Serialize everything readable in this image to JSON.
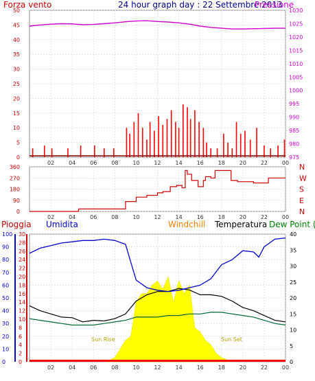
{
  "header": {
    "left_label": "Forza vento",
    "title": "24 hour graph day : 22 Settembre 2013",
    "right_label": "Pressione"
  },
  "wind_panel": {
    "direction_labels": [
      "N",
      "W",
      "S",
      "E",
      "N"
    ]
  },
  "bottom_header": {
    "rain": "Pioggia",
    "humidity": "Umidita",
    "windchill": "Windchill",
    "temperature": "Temperatura",
    "dewpoint": "Dew Point (°C"
  },
  "annotations": {
    "sunrise": "Sun Rise",
    "sunset": "Sun Set"
  },
  "colors": {
    "wind": "#ff0000",
    "gust": "#008000",
    "windchill_green": "#008000",
    "pressure": "#cc00cc",
    "direction": "#cc0000",
    "humidity": "#0000cc",
    "temperature": "#000000",
    "dewpoint": "#006633",
    "sun": "#ffff00",
    "rain": "#ff0000",
    "grid": "#d0d0d0"
  },
  "chart_data": [
    {
      "type": "line",
      "title": "24 hour graph day : 22 Settembre 2013",
      "x_ticks": [
        "02",
        "04",
        "06",
        "08",
        "10",
        "12",
        "14",
        "16",
        "18",
        "20",
        "22",
        "00"
      ],
      "left_axis": {
        "label": "Forza vento",
        "range": [
          0,
          50
        ],
        "ticks": [
          0,
          5,
          10,
          15,
          20,
          25,
          30,
          35,
          40,
          45,
          50
        ]
      },
      "right_axis": {
        "label": "Pressione",
        "range": [
          975,
          1030
        ],
        "ticks": [
          975,
          980,
          985,
          990,
          995,
          1000,
          1005,
          1010,
          1015,
          1020,
          1025,
          1030
        ]
      },
      "series": [
        {
          "name": "Pressione",
          "axis": "right",
          "x": [
            0,
            1,
            2,
            3,
            4,
            5,
            6,
            7,
            8,
            9,
            10,
            11,
            12,
            13,
            14,
            15,
            16,
            17,
            18,
            19,
            20,
            21,
            22,
            23,
            24
          ],
          "values": [
            1024.1,
            1024.5,
            1024.8,
            1025.0,
            1024.9,
            1024.6,
            1024.7,
            1025.0,
            1025.3,
            1025.7,
            1026.0,
            1026.1,
            1025.8,
            1025.6,
            1025.3,
            1024.8,
            1024.1,
            1023.6,
            1023.3,
            1023.0,
            1023.0,
            1023.1,
            1023.2,
            1023.3,
            1023.3
          ]
        },
        {
          "name": "Forza vento",
          "axis": "left",
          "x": [
            0.3,
            1.4,
            2.1,
            3.6,
            4.8,
            6.1,
            7.0,
            7.9,
            9.1,
            9.4,
            9.8,
            10.2,
            10.6,
            11.0,
            11.3,
            11.7,
            12.1,
            12.5,
            12.9,
            13.3,
            13.7,
            14.0,
            14.4,
            14.8,
            15.1,
            15.5,
            15.9,
            16.3,
            16.6,
            17.0,
            17.6,
            18.2,
            18.6,
            19.0,
            19.4,
            19.8,
            20.2,
            20.7,
            21.3,
            22.0,
            22.6,
            23.3,
            23.9
          ],
          "values": [
            3,
            4,
            3,
            3,
            4,
            4,
            3,
            3,
            10,
            8,
            12,
            15,
            10,
            6,
            12,
            9,
            14,
            11,
            13,
            16,
            12,
            10,
            18,
            17,
            13,
            16,
            12,
            10,
            5,
            3,
            3,
            8,
            5,
            3,
            12,
            8,
            9,
            6,
            10,
            4,
            3,
            4,
            6
          ]
        }
      ]
    },
    {
      "type": "line",
      "x_ticks": [
        "02",
        "04",
        "06",
        "08",
        "10",
        "12",
        "14",
        "16",
        "18",
        "20",
        "22",
        "00"
      ],
      "left_axis": {
        "range": [
          0,
          360
        ],
        "ticks": [
          0,
          90,
          180,
          270,
          360
        ]
      },
      "right_axis": {
        "ticks": [
          "N",
          "W",
          "S",
          "E",
          "N"
        ]
      },
      "series": [
        {
          "name": "direction",
          "x": [
            0,
            4.5,
            4.6,
            8.9,
            9.0,
            10.0,
            11.0,
            12.0,
            12.5,
            13.2,
            13.8,
            14.3,
            14.6,
            14.8,
            15.2,
            15.8,
            16.3,
            16.5,
            17.0,
            17.4,
            18.5,
            18.9,
            19.5,
            21.0,
            22.0,
            22.4,
            24
          ],
          "values": [
            0,
            0,
            20,
            20,
            80,
            115,
            130,
            150,
            160,
            200,
            210,
            190,
            330,
            300,
            250,
            200,
            250,
            280,
            270,
            330,
            330,
            250,
            240,
            230,
            230,
            270,
            270
          ]
        }
      ]
    },
    {
      "type": "line",
      "x_ticks": [
        "02",
        "04",
        "06",
        "08",
        "10",
        "12",
        "14",
        "16",
        "18",
        "20",
        "22",
        "00"
      ],
      "axes": {
        "humidity": {
          "label": "Umidita",
          "range": [
            0,
            100
          ],
          "ticks": [
            0,
            10,
            20,
            30,
            40,
            50,
            60,
            70,
            80,
            90,
            100
          ]
        },
        "rain": {
          "label": "Pioggia",
          "range": [
            0,
            30
          ],
          "ticks": [
            0,
            2,
            4,
            6,
            8,
            10,
            12,
            14,
            16,
            18,
            20,
            22,
            24,
            26,
            28,
            30
          ]
        },
        "temperature": {
          "label": "Temperatura",
          "range": [
            0,
            40
          ],
          "ticks": [
            0,
            5,
            10,
            15,
            20,
            25,
            30,
            35,
            40
          ]
        }
      },
      "series": [
        {
          "name": "Umidita",
          "axis": "humidity",
          "x": [
            0,
            1,
            2,
            3,
            4,
            5,
            6,
            7,
            8,
            9,
            9.5,
            10,
            11,
            12,
            13,
            14,
            15,
            16,
            17,
            18,
            19,
            20,
            21,
            21.5,
            22,
            22.5,
            23,
            24
          ],
          "values": [
            85,
            89,
            91,
            93,
            94,
            95,
            95,
            96,
            95,
            92,
            78,
            64,
            58,
            56,
            55,
            56,
            58,
            60,
            65,
            76,
            80,
            87,
            86,
            82,
            90,
            93,
            96,
            97
          ]
        },
        {
          "name": "Temperatura",
          "axis": "temperature",
          "x": [
            0,
            1,
            2,
            3,
            4,
            5,
            6,
            7,
            8,
            9,
            10,
            11,
            12,
            13,
            14,
            15,
            16,
            17,
            18,
            19,
            20,
            21,
            22,
            23,
            24
          ],
          "values": [
            17.5,
            16,
            15,
            14,
            13.8,
            12.5,
            13,
            12.8,
            13.5,
            15,
            19,
            21,
            22,
            22,
            23,
            22.5,
            21,
            21,
            20.5,
            19,
            17,
            16,
            14.5,
            13,
            12.5
          ]
        },
        {
          "name": "Dew Point (°C",
          "axis": "temperature",
          "x": [
            0,
            1,
            2,
            3,
            4,
            5,
            6,
            7,
            8,
            9,
            10,
            11,
            12,
            13,
            14,
            15,
            16,
            17,
            18,
            19,
            20,
            21,
            22,
            23,
            24
          ],
          "values": [
            13.5,
            13,
            12.5,
            12,
            11.5,
            11.5,
            11.5,
            12,
            12.5,
            13,
            14,
            14,
            14,
            14.5,
            14.5,
            15,
            15,
            15.5,
            15.5,
            15,
            14.5,
            14,
            13,
            12,
            11.5
          ]
        },
        {
          "name": "sun",
          "axis": "rain",
          "x": [
            7.2,
            8,
            8.5,
            9,
            9.5,
            10,
            10.5,
            11,
            11.5,
            12,
            12.5,
            13,
            13.5,
            14,
            14.5,
            15,
            15.5,
            16,
            16.5,
            17,
            17.5,
            18,
            18.5,
            19
          ],
          "values": [
            0,
            1,
            3,
            5,
            6,
            14,
            16,
            16,
            18,
            19,
            17,
            20,
            14,
            19,
            16,
            18,
            8,
            7,
            5,
            4,
            2,
            1,
            0.5,
            0
          ]
        }
      ]
    }
  ]
}
